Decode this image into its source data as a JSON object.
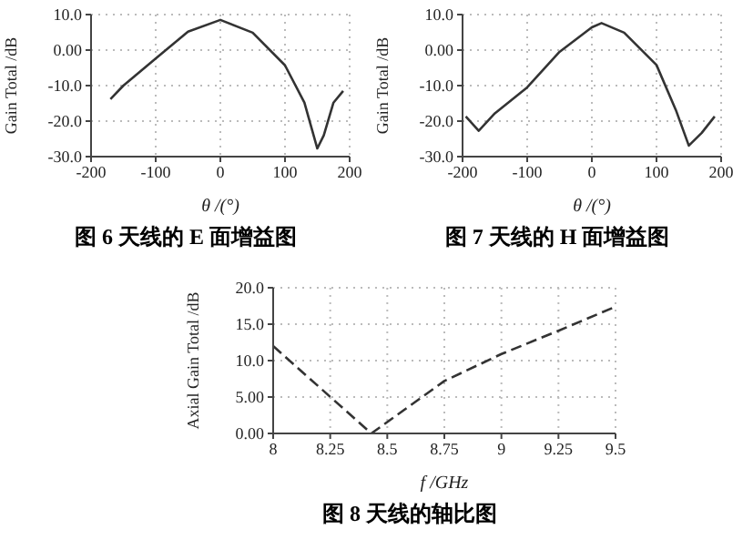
{
  "chart_data": [
    {
      "type": "line",
      "title": "图 6 天线的 E 面增益图",
      "xlabel": "θ /(°)",
      "ylabel": "Gain Total /dB",
      "x": [
        -170,
        -150,
        -100,
        -50,
        0,
        50,
        100,
        130,
        150,
        160,
        175,
        190
      ],
      "series": [
        {
          "color": "#333333",
          "values": [
            -13.8,
            -10,
            -2.4,
            5.2,
            8.5,
            4.9,
            -4.3,
            -14.8,
            -27.7,
            -24,
            -14.8,
            -11.5
          ]
        }
      ],
      "xlim": [
        -200,
        200
      ],
      "xticks": [
        -200,
        -100,
        0,
        100,
        200
      ],
      "ylim": [
        -30,
        10
      ],
      "yticks": [
        {
          "value": -30,
          "label": "-30.0"
        },
        {
          "value": -20,
          "label": "-20.0"
        },
        {
          "value": -10,
          "label": "-10.0"
        },
        {
          "value": 0,
          "label": "0.00"
        },
        {
          "value": 10,
          "label": "10.0"
        }
      ],
      "grid": true,
      "marker": "none",
      "line_style": "solid"
    },
    {
      "type": "line",
      "title": "图 7 天线的 H 面增益图",
      "xlabel": "θ /(°)",
      "ylabel": "Gain Total /dB",
      "x": [
        -195,
        -175,
        -150,
        -100,
        -50,
        0,
        15,
        50,
        100,
        130,
        150,
        170,
        190
      ],
      "series": [
        {
          "color": "#333333",
          "values": [
            -18.7,
            -22.7,
            -17.8,
            -10.5,
            -0.5,
            6.4,
            7.6,
            4.9,
            -4.2,
            -16.9,
            -26.9,
            -23.3,
            -18.7
          ]
        }
      ],
      "xlim": [
        -200,
        200
      ],
      "xticks": [
        -200,
        -100,
        0,
        100,
        200
      ],
      "ylim": [
        -30,
        10
      ],
      "yticks": [
        {
          "value": -30,
          "label": "-30.0"
        },
        {
          "value": -20,
          "label": "-20.0"
        },
        {
          "value": -10,
          "label": "-10.0"
        },
        {
          "value": 0,
          "label": "0.00"
        },
        {
          "value": 10,
          "label": "10.0"
        }
      ],
      "grid": true,
      "marker": "none",
      "line_style": "solid"
    },
    {
      "type": "line",
      "title": "图 8 天线的轴比图",
      "xlabel": "f /GHz",
      "ylabel": "Axial Gain Total /dB",
      "x": [
        8,
        8.43,
        8.75,
        9,
        9.25,
        9.5
      ],
      "series": [
        {
          "color": "#333333",
          "values": [
            12,
            0,
            7.2,
            10.9,
            14.1,
            17.4
          ]
        }
      ],
      "xlim": [
        8,
        9.5
      ],
      "xticks": [
        8,
        8.25,
        8.5,
        8.75,
        9,
        9.25,
        9.5
      ],
      "ylim": [
        0,
        20
      ],
      "yticks": [
        {
          "value": 0,
          "label": "0.00"
        },
        {
          "value": 5,
          "label": "5.00"
        },
        {
          "value": 10,
          "label": "10.0"
        },
        {
          "value": 15,
          "label": "15.0"
        },
        {
          "value": 20,
          "label": "20.0"
        }
      ],
      "grid": true,
      "marker": "none",
      "line_style": "dashed"
    }
  ]
}
